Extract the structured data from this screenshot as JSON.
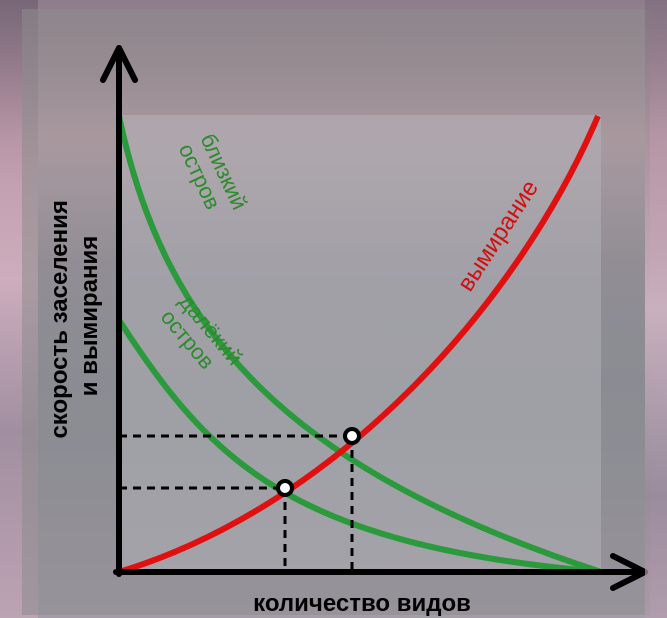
{
  "diagram": {
    "ylabel_line1": "скорость заселения",
    "ylabel_line2": "и вымирания",
    "xlabel": "количество видов",
    "near_island_line1": "близкий",
    "near_island_line2": "остров",
    "far_island_line1": "далёкий",
    "far_island_line2": "остров",
    "extinction_label": "вымирание"
  },
  "colors": {
    "immigration": "#2a9a3c",
    "extinction": "#e01010",
    "axis": "#000000",
    "label_green": "#2e8a2e",
    "label_red": "#d01010"
  }
}
